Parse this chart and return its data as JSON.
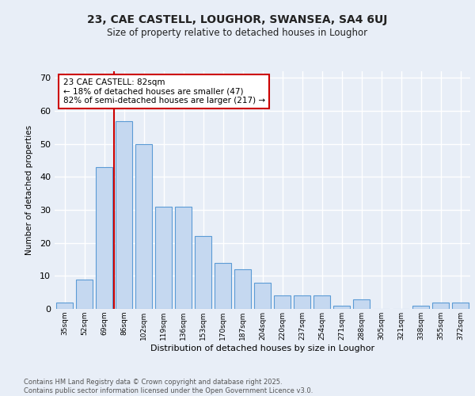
{
  "title1": "23, CAE CASTELL, LOUGHOR, SWANSEA, SA4 6UJ",
  "title2": "Size of property relative to detached houses in Loughor",
  "xlabel": "Distribution of detached houses by size in Loughor",
  "ylabel": "Number of detached properties",
  "categories": [
    "35sqm",
    "52sqm",
    "69sqm",
    "86sqm",
    "102sqm",
    "119sqm",
    "136sqm",
    "153sqm",
    "170sqm",
    "187sqm",
    "204sqm",
    "220sqm",
    "237sqm",
    "254sqm",
    "271sqm",
    "288sqm",
    "305sqm",
    "321sqm",
    "338sqm",
    "355sqm",
    "372sqm"
  ],
  "values": [
    2,
    9,
    43,
    57,
    50,
    31,
    31,
    22,
    14,
    12,
    8,
    4,
    4,
    4,
    1,
    3,
    0,
    0,
    1,
    2,
    2
  ],
  "bar_color": "#c5d8f0",
  "bar_edge_color": "#5b9bd5",
  "vline_x_index": 3,
  "vline_color": "#cc0000",
  "annotation_title": "23 CAE CASTELL: 82sqm",
  "annotation_line1": "← 18% of detached houses are smaller (47)",
  "annotation_line2": "82% of semi-detached houses are larger (217) →",
  "annotation_box_color": "#cc0000",
  "ylim": [
    0,
    72
  ],
  "yticks": [
    0,
    10,
    20,
    30,
    40,
    50,
    60,
    70
  ],
  "background_color": "#e8eef7",
  "grid_color": "#ffffff",
  "fig_background": "#e8eef7",
  "footer_line1": "Contains HM Land Registry data © Crown copyright and database right 2025.",
  "footer_line2": "Contains public sector information licensed under the Open Government Licence v3.0."
}
